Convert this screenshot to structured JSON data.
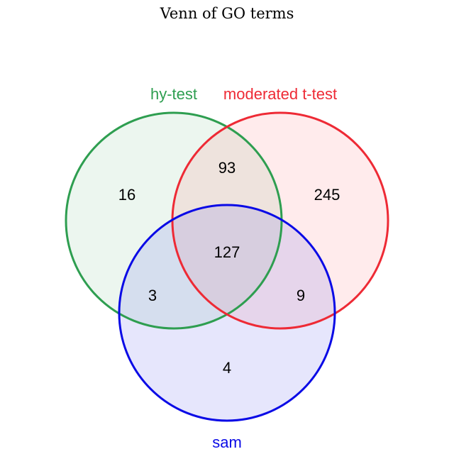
{
  "title": "Venn of GO terms",
  "sets": [
    {
      "key": "hy",
      "label": "hy-test",
      "stroke": "#2e9e50",
      "fill": "#2e9e50"
    },
    {
      "key": "mod",
      "label": "moderated t-test",
      "stroke": "#ee2a35",
      "fill": "#ff4a55"
    },
    {
      "key": "sam",
      "label": "sam",
      "stroke": "#0a0ae6",
      "fill": "#5a5aee"
    }
  ],
  "regions": {
    "hy_only": "16",
    "mod_only": "245",
    "sam_only": "4",
    "hy_mod": "93",
    "hy_sam": "3",
    "mod_sam": "9",
    "all": "127"
  }
}
